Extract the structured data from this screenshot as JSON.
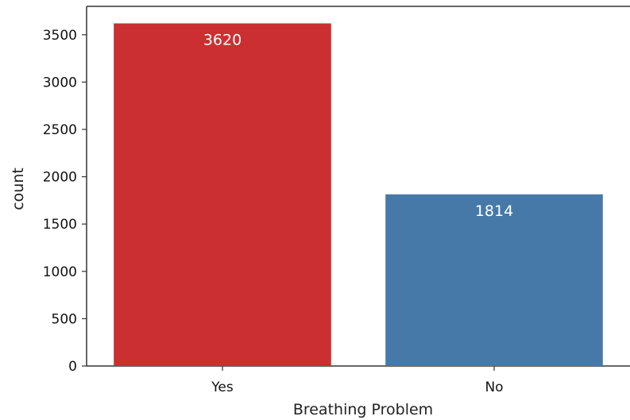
{
  "chart_data": {
    "type": "bar",
    "categories": [
      "Yes",
      "No"
    ],
    "values": [
      3620,
      1814
    ],
    "data_labels": [
      "3620",
      "1814"
    ],
    "title": "",
    "xlabel": "Breathing Problem",
    "ylabel": "count",
    "ylim": [
      0,
      3800
    ],
    "yticks": [
      0,
      500,
      1000,
      1500,
      2000,
      2500,
      3000,
      3500
    ],
    "ytick_labels": [
      "0",
      "500",
      "1000",
      "1500",
      "2000",
      "2500",
      "3000",
      "3500"
    ],
    "grid": false,
    "legend": "none",
    "colors": [
      "#cb2f31",
      "#4779a8"
    ]
  }
}
